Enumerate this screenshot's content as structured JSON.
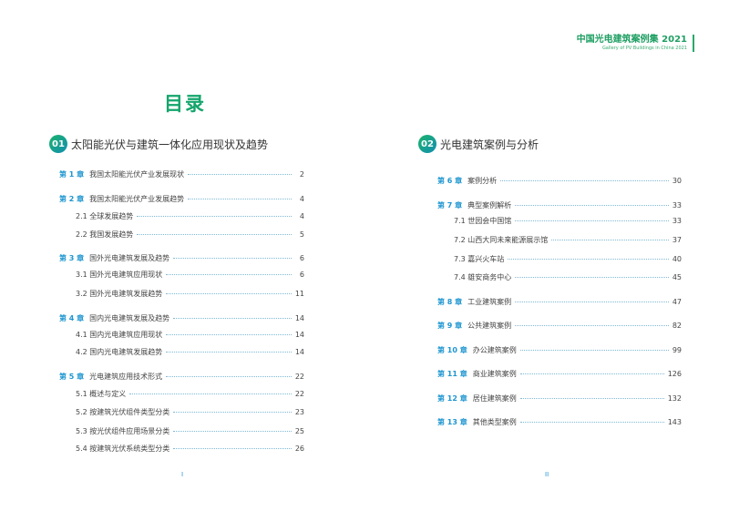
{
  "header": {
    "title": "中国光电建筑案例集 2021",
    "subtitle": "Gallery of PV Buildings in China 2021"
  },
  "toc_title": "目录",
  "left": {
    "badge": "01",
    "section_title": "太阳能光伏与建筑一体化应用现状及趋势",
    "entries": [
      {
        "chapter": "第 1 章",
        "label": "我国太阳能光伏产业发展现状",
        "page": "2"
      },
      {
        "chapter": "第 2 章",
        "label": "我国太阳能光伏产业发展趋势",
        "page": "4"
      },
      {
        "label": "2.1 全球发展趋势",
        "page": "4"
      },
      {
        "label": "2.2 我国发展趋势",
        "page": "5"
      },
      {
        "chapter": "第 3 章",
        "label": "国外光电建筑发展及趋势",
        "page": "6"
      },
      {
        "label": "3.1 国外光电建筑应用现状",
        "page": "6"
      },
      {
        "label": "3.2 国外光电建筑发展趋势",
        "page": "11"
      },
      {
        "chapter": "第 4 章",
        "label": "国内光电建筑发展及趋势",
        "page": "14"
      },
      {
        "label": "4.1 国内光电建筑应用现状",
        "page": "14"
      },
      {
        "label": "4.2 国内光电建筑发展趋势",
        "page": "14"
      },
      {
        "chapter": "第 5 章",
        "label": "光电建筑应用技术形式",
        "page": "22"
      },
      {
        "label": "5.1 概述与定义",
        "page": "22"
      },
      {
        "label": "5.2 按建筑光伏组件类型分类",
        "page": "23"
      },
      {
        "label": "5.3 按光伏组件应用场景分类",
        "page": "25"
      },
      {
        "label": "5.4 按建筑光伏系统类型分类",
        "page": "26"
      }
    ],
    "page_number": "I"
  },
  "right": {
    "badge": "02",
    "section_title": "光电建筑案例与分析",
    "entries": [
      {
        "chapter": "第 6 章",
        "label": "案例分析",
        "page": "30"
      },
      {
        "chapter": "第 7 章",
        "label": "典型案例解析",
        "page": "33"
      },
      {
        "label": "7.1 世园会中国馆",
        "page": "33"
      },
      {
        "label": "7.2 山西大同未来能源展示馆",
        "page": "37"
      },
      {
        "label": "7.3 嘉兴火车站",
        "page": "40"
      },
      {
        "label": "7.4 雄安商务中心",
        "page": "45"
      },
      {
        "chapter": "第 8 章",
        "label": "工业建筑案例",
        "page": "47"
      },
      {
        "chapter": "第 9 章",
        "label": "公共建筑案例",
        "page": "82"
      },
      {
        "chapter": "第 10 章",
        "label": "办公建筑案例",
        "page": "99"
      },
      {
        "chapter": "第 11 章",
        "label": "商业建筑案例",
        "page": "126"
      },
      {
        "chapter": "第 12 章",
        "label": "居住建筑案例",
        "page": "132"
      },
      {
        "chapter": "第 13 章",
        "label": "其他类型案例",
        "page": "143"
      }
    ],
    "page_number": "II"
  },
  "colors": {
    "green": "#14a56c",
    "blue": "#1e96d0"
  }
}
